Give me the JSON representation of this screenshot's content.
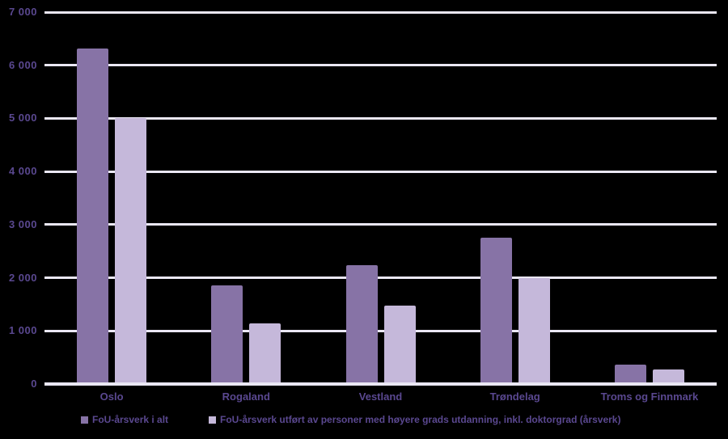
{
  "chart_data": {
    "type": "bar",
    "categories": [
      "Oslo",
      "Rogaland",
      "Vestland",
      "Trøndelag",
      "Troms og Finnmark"
    ],
    "series": [
      {
        "name": "FoU-årsverk i alt",
        "color": "#8773a6",
        "values": [
          6310,
          1860,
          2240,
          2760,
          360
        ]
      },
      {
        "name": "FoU-årsverk utført av personer med høyere grads utdanning, inkl. doktorgrad (årsverk)",
        "color": "#c5b8da",
        "values": [
          5000,
          1140,
          1480,
          1990,
          270
        ]
      }
    ],
    "xlabel": "",
    "ylabel": "",
    "ylim": [
      0,
      7000
    ],
    "ytick_interval": 1000,
    "ytick_labels": [
      "0",
      "1 000",
      "2 000",
      "3 000",
      "4 000",
      "5 000",
      "6 000",
      "7 000"
    ],
    "grid": true,
    "legend_position": "bottom",
    "colors": {
      "background": "#000000",
      "gridline": "#eae7f4",
      "axis_text": "#5a4890"
    }
  }
}
